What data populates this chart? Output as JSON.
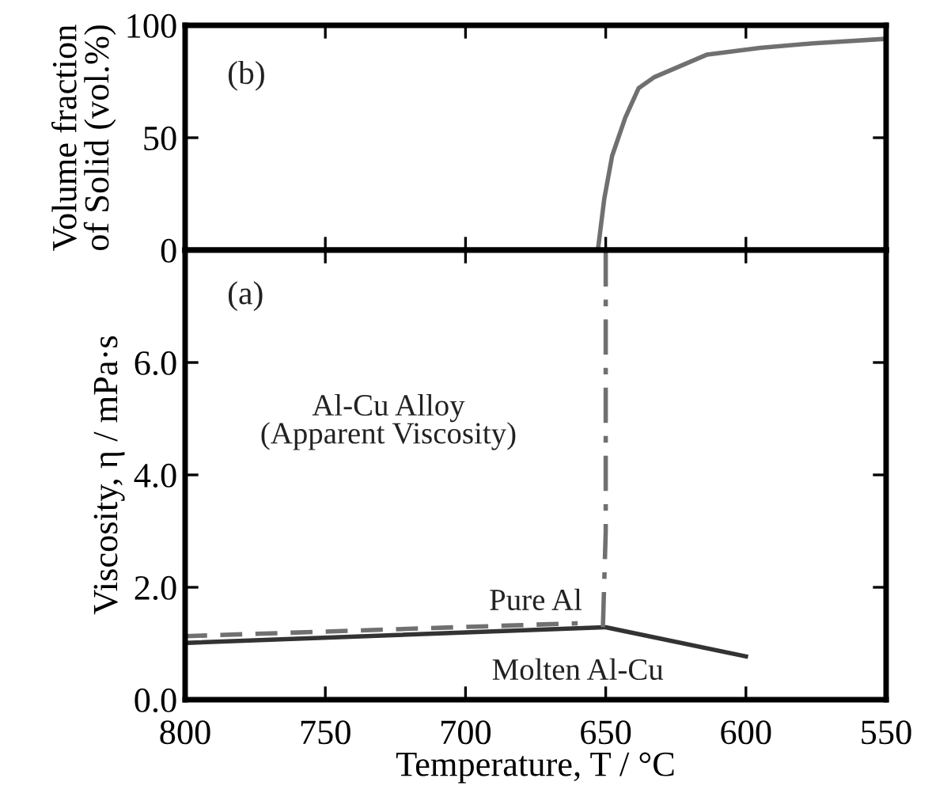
{
  "chart_data": [
    {
      "type": "line",
      "ylabel": "Volume fraction\nof Solid (vol.%)",
      "annotations": [
        "(b)"
      ],
      "xlim": [
        800,
        550
      ],
      "xticks": [
        {
          "value": 800,
          "label": null
        },
        {
          "value": 750,
          "label": null
        },
        {
          "value": 700,
          "label": null
        },
        {
          "value": 650,
          "label": null
        },
        {
          "value": 600,
          "label": null
        },
        {
          "value": 550,
          "label": null
        }
      ],
      "ylim": [
        0,
        100
      ],
      "yticks": [
        0,
        50,
        100
      ],
      "tick_labels": "y",
      "grid": false,
      "legend": false,
      "marker": "none",
      "series": [
        {
          "color": "#707070",
          "line_style": "solid",
          "x": [
            652.8,
            650.5,
            647.7,
            643,
            638.3,
            632.6,
            623.2,
            613.8,
            595,
            576,
            550
          ],
          "values": [
            0,
            23,
            42,
            59,
            72,
            77,
            82,
            87,
            90,
            92,
            94
          ]
        }
      ]
    },
    {
      "type": "line",
      "xlabel": "Temperature, T / °C",
      "ylabel": "Viscosity, η / mPa·s",
      "annotations": [
        "(a)",
        "Al-Cu Alloy\n(Apparent Viscosity)"
      ],
      "xlim": [
        800,
        550
      ],
      "xticks": [
        800,
        750,
        700,
        650,
        600,
        550
      ],
      "ylim": [
        0,
        8
      ],
      "yticks": [
        {
          "value": 0,
          "label": "0.0"
        },
        {
          "value": 2,
          "label": "2.0"
        },
        {
          "value": 4,
          "label": "4.0"
        },
        {
          "value": 6,
          "label": "6.0"
        }
      ],
      "grid": false,
      "legend": false,
      "marker": "none",
      "series": [
        {
          "name": "Pure Al",
          "color": "#707070",
          "line_style": "dashed",
          "x": [
            800,
            660
          ],
          "values": [
            1.13,
            1.36
          ]
        },
        {
          "name": "Molten Al-Cu",
          "color": "#333333",
          "line_style": "solid",
          "x": [
            800,
            650,
            600
          ],
          "values": [
            1.01,
            1.29,
            0.77
          ]
        },
        {
          "color": "#707070",
          "line_style": "dashdot",
          "x": [
            651,
            650,
            650
          ],
          "values": [
            1.29,
            3.0,
            8.0
          ]
        }
      ]
    }
  ]
}
